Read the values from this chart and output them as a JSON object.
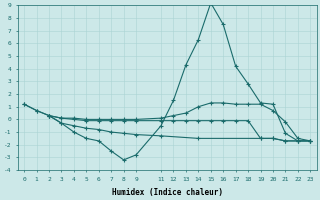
{
  "xlabel": "Humidex (Indice chaleur)",
  "xlim": [
    -0.5,
    23.5
  ],
  "ylim": [
    -4,
    9
  ],
  "xticks": [
    0,
    1,
    2,
    3,
    4,
    5,
    6,
    7,
    8,
    9,
    11,
    12,
    13,
    14,
    15,
    16,
    17,
    18,
    19,
    20,
    21,
    22,
    23
  ],
  "yticks": [
    -4,
    -3,
    -2,
    -1,
    0,
    1,
    2,
    3,
    4,
    5,
    6,
    7,
    8,
    9
  ],
  "bg_color": "#cce8e8",
  "line_color": "#1a6b6b",
  "grid_color": "#aad4d4",
  "line1_x": [
    0,
    1,
    2,
    3,
    4,
    5,
    6,
    7,
    8,
    9,
    11,
    12,
    13,
    14,
    15,
    16,
    17,
    18,
    19,
    20,
    21,
    22,
    23
  ],
  "line1_y": [
    1.2,
    0.7,
    0.3,
    -0.3,
    -1.0,
    -1.5,
    -1.7,
    -2.5,
    -3.2,
    -2.8,
    -0.5,
    1.5,
    4.3,
    6.3,
    9.2,
    7.5,
    4.2,
    2.8,
    1.3,
    1.2,
    -1.1,
    -1.7,
    -1.7
  ],
  "line2_x": [
    0,
    1,
    2,
    3,
    4,
    5,
    6,
    7,
    8,
    9,
    11,
    12,
    13,
    14,
    15,
    16,
    17,
    18,
    19,
    20,
    21,
    22,
    23
  ],
  "line2_y": [
    1.2,
    0.7,
    0.3,
    0.1,
    0.1,
    0.0,
    0.0,
    0.0,
    0.0,
    0.0,
    0.1,
    0.3,
    0.5,
    1.0,
    1.3,
    1.3,
    1.2,
    1.2,
    1.2,
    0.7,
    -0.2,
    -1.5,
    -1.7
  ],
  "line3_x": [
    2,
    3,
    4,
    5,
    6,
    7,
    8,
    9,
    11,
    12,
    13,
    14,
    15,
    16,
    17,
    18,
    19,
    20,
    21,
    22,
    23
  ],
  "line3_y": [
    0.3,
    0.1,
    0.0,
    -0.1,
    -0.1,
    -0.1,
    -0.1,
    -0.1,
    -0.1,
    -0.1,
    -0.1,
    -0.1,
    -0.1,
    -0.1,
    -0.1,
    -0.1,
    -1.5,
    -1.5,
    -1.7,
    -1.7,
    -1.7
  ],
  "line4_x": [
    2,
    3,
    4,
    5,
    6,
    7,
    8,
    9,
    11,
    14,
    19,
    20,
    21,
    22,
    23
  ],
  "line4_y": [
    0.3,
    -0.3,
    -0.5,
    -0.7,
    -0.8,
    -1.0,
    -1.1,
    -1.2,
    -1.3,
    -1.5,
    -1.5,
    -1.5,
    -1.7,
    -1.7,
    -1.7
  ],
  "figsize": [
    3.2,
    2.0
  ],
  "dpi": 100
}
